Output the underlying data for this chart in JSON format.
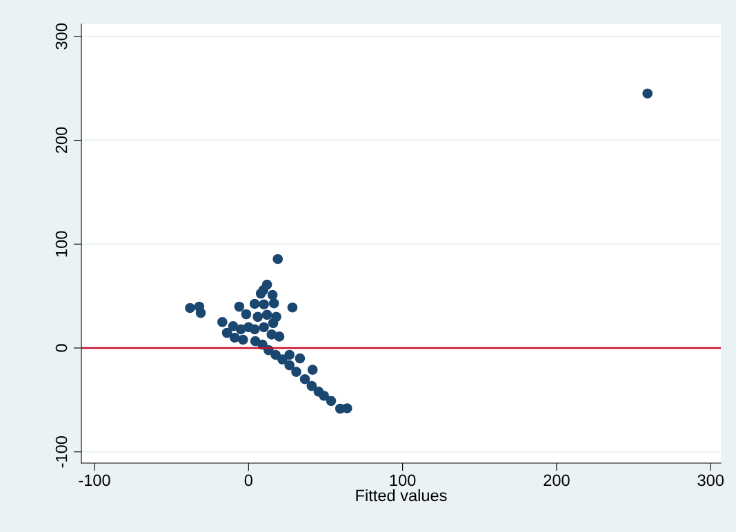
{
  "chart_data": {
    "type": "scatter",
    "xlabel": "Fitted values",
    "xlim": [
      -108.5,
      306.6
    ],
    "ylim": [
      -110.8,
      311.8
    ],
    "xticks": [
      -100,
      0,
      100,
      200,
      300
    ],
    "yticks": [
      -100,
      0,
      100,
      200,
      300
    ],
    "grid": "y",
    "marker": "circle",
    "ref_lines": [
      {
        "axis": "y",
        "value": 0,
        "color": "#c8102e"
      }
    ],
    "series": [
      {
        "color": "#1a476f",
        "x": [
          259,
          19,
          -38,
          -32,
          -31,
          -17,
          -14,
          -6,
          28.5,
          12,
          9.6,
          8,
          15.6,
          16.5,
          4,
          -1.5,
          -10,
          -9,
          -3.6,
          64,
          59.5,
          53.6,
          49,
          45.5,
          41,
          36.6,
          31,
          26.6,
          22,
          17.6,
          13,
          9,
          4.4,
          20,
          26.6,
          33.4,
          41.6,
          4,
          10,
          16,
          6,
          12,
          18,
          10,
          0,
          -5,
          15
        ],
        "values": [
          245,
          85.6,
          38.5,
          39.8,
          33.8,
          25,
          14.6,
          39.8,
          39,
          61,
          55.7,
          52.4,
          51,
          43,
          42.5,
          32.5,
          21,
          10,
          8,
          -58,
          -58.4,
          -51,
          -46,
          -42,
          -36.5,
          -30,
          -23,
          -16.6,
          -11,
          -6.6,
          -2,
          3.3,
          6.6,
          11,
          -6.6,
          -10,
          -21,
          18,
          20,
          24,
          30,
          32,
          30,
          42,
          20,
          18,
          13
        ]
      }
    ]
  }
}
